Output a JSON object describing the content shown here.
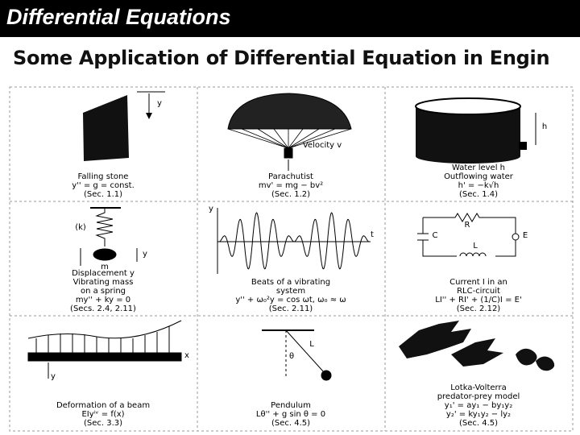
{
  "header": {
    "title": "Differential Equations"
  },
  "subtitle": "Some Application of Differential Equation in Engin",
  "panels": [
    {
      "lines": [
        "Falling stone",
        "y'' = g = const.",
        "(Sec. 1.1)"
      ],
      "labels": [
        "y"
      ]
    },
    {
      "lines": [
        "Parachutist",
        "mv' = mg − bv²",
        "(Sec. 1.2)"
      ],
      "labels": [
        "Velocity v"
      ]
    },
    {
      "lines": [
        "Water level h",
        "Outflowing water",
        "h' = −k√h",
        "(Sec. 1.4)"
      ],
      "labels": [
        "h"
      ]
    },
    {
      "lines": [
        "Displacement y",
        "Vibrating mass",
        "on a spring",
        "my'' + ky = 0",
        "(Secs. 2.4, 2.11)"
      ],
      "labels": [
        "(k)",
        "m",
        "y"
      ]
    },
    {
      "lines": [
        "Beats of a vibrating",
        "system",
        "y'' + ω₀²y = cos ωt, ω₀ ≈ ω",
        "(Sec. 2.11)"
      ],
      "labels": [
        "y",
        "t"
      ]
    },
    {
      "lines": [
        "Current I in an",
        "RLC-circuit",
        "LI'' + RI' + (1/C)I = E'",
        "(Sec. 2.12)"
      ],
      "labels": [
        "R",
        "L",
        "C",
        "E"
      ]
    },
    {
      "lines": [
        "Deformation of a beam",
        "EIyⁱᵛ = f(x)",
        "(Sec. 3.3)"
      ],
      "labels": [
        "x",
        "y"
      ]
    },
    {
      "lines": [
        "Pendulum",
        "Lθ'' + g sin θ = 0",
        "(Sec. 4.5)"
      ],
      "labels": [
        "θ",
        "L"
      ]
    },
    {
      "lines": [
        "Lotka-Volterra",
        "predator-prey model",
        "y₁' = ay₁ − by₁y₂",
        "y₂' = ky₁y₂ − ly₂",
        "(Sec. 4.5)"
      ],
      "labels": []
    }
  ]
}
